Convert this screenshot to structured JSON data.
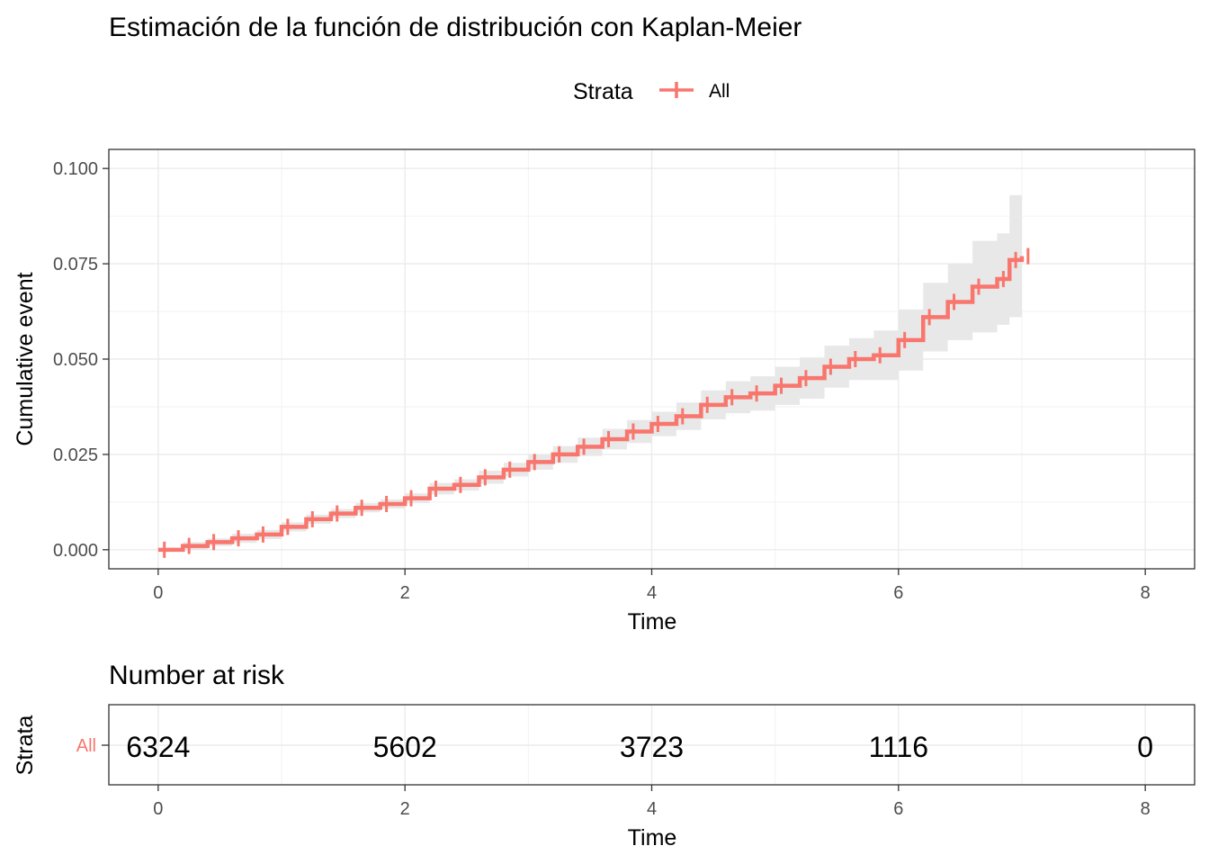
{
  "chart_data": [
    {
      "type": "line",
      "step": true,
      "title": "Estimación de la función de distribución con Kaplan-Meier",
      "xlabel": "Time",
      "ylabel": "Cumulative event",
      "xlim": [
        -0.4,
        8.4
      ],
      "ylim": [
        -0.005,
        0.105
      ],
      "xticks": [
        0,
        2,
        4,
        6,
        8
      ],
      "xtick_labels": [
        "0",
        "2",
        "4",
        "6",
        "8"
      ],
      "yticks": [
        0,
        0.025,
        0.05,
        0.075,
        0.1
      ],
      "ytick_labels": [
        "0.000",
        "0.025",
        "0.050",
        "0.075",
        "0.100"
      ],
      "grid": true,
      "legend": {
        "position": "top",
        "title": "Strata",
        "entries": [
          "All"
        ]
      },
      "series": [
        {
          "name": "All",
          "color": "#F8766D",
          "ci_color": "#e8e8e8",
          "x": [
            0,
            0.2,
            0.4,
            0.6,
            0.8,
            1.0,
            1.2,
            1.4,
            1.6,
            1.8,
            2.0,
            2.2,
            2.4,
            2.6,
            2.8,
            3.0,
            3.2,
            3.4,
            3.6,
            3.8,
            4.0,
            4.2,
            4.4,
            4.6,
            4.8,
            5.0,
            5.2,
            5.4,
            5.6,
            5.8,
            6.0,
            6.2,
            6.4,
            6.6,
            6.8,
            6.9,
            7.0
          ],
          "y": [
            0,
            0.001,
            0.002,
            0.003,
            0.004,
            0.006,
            0.008,
            0.0095,
            0.011,
            0.012,
            0.0135,
            0.016,
            0.017,
            0.019,
            0.021,
            0.023,
            0.025,
            0.027,
            0.029,
            0.031,
            0.033,
            0.035,
            0.038,
            0.04,
            0.041,
            0.043,
            0.045,
            0.048,
            0.05,
            0.051,
            0.055,
            0.061,
            0.065,
            0.069,
            0.071,
            0.076,
            0.077
          ],
          "ci_lower": [
            0,
            0,
            0.001,
            0.0018,
            0.0028,
            0.0048,
            0.0068,
            0.0083,
            0.0098,
            0.0108,
            0.0122,
            0.0145,
            0.0155,
            0.0173,
            0.0192,
            0.021,
            0.0228,
            0.0246,
            0.0263,
            0.028,
            0.0298,
            0.0314,
            0.0342,
            0.0358,
            0.0365,
            0.038,
            0.0396,
            0.0425,
            0.0445,
            0.0445,
            0.047,
            0.052,
            0.055,
            0.057,
            0.059,
            0.061,
            0.061
          ],
          "ci_upper": [
            0,
            0.002,
            0.003,
            0.0042,
            0.0052,
            0.0072,
            0.0092,
            0.0107,
            0.0122,
            0.0132,
            0.0148,
            0.0175,
            0.0185,
            0.0207,
            0.0228,
            0.025,
            0.0272,
            0.0294,
            0.0317,
            0.034,
            0.0362,
            0.0386,
            0.0418,
            0.0442,
            0.0455,
            0.048,
            0.0504,
            0.0535,
            0.0555,
            0.0575,
            0.063,
            0.07,
            0.075,
            0.081,
            0.083,
            0.093,
            0.093
          ],
          "censor_marks": [
            0.05,
            0.25,
            0.45,
            0.65,
            0.85,
            1.05,
            1.25,
            1.45,
            1.65,
            1.85,
            2.05,
            2.25,
            2.45,
            2.65,
            2.85,
            3.05,
            3.25,
            3.45,
            3.65,
            3.85,
            4.05,
            4.25,
            4.45,
            4.65,
            4.85,
            5.05,
            5.25,
            5.45,
            5.65,
            5.85,
            6.05,
            6.25,
            6.45,
            6.65,
            6.85,
            6.95,
            7.05
          ]
        }
      ]
    },
    {
      "type": "table",
      "title": "Number at risk",
      "xlabel": "Time",
      "ylabel": "Strata",
      "xlim": [
        -0.4,
        8.4
      ],
      "xticks": [
        0,
        2,
        4,
        6,
        8
      ],
      "xtick_labels": [
        "0",
        "2",
        "4",
        "6",
        "8"
      ],
      "row_labels": [
        "All"
      ],
      "row_color": "#F8766D",
      "x": [
        0,
        2,
        4,
        6,
        8
      ],
      "values": [
        "6324",
        "5602",
        "3723",
        "1116",
        "0"
      ]
    }
  ]
}
